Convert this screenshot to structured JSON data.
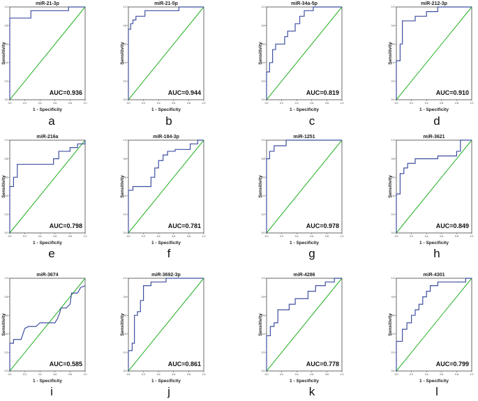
{
  "chart_data": [
    {
      "type": "line",
      "title": "miR-21-3p",
      "label": "a",
      "auc": "AUC=0.936",
      "xlabel": "1 - Specificity",
      "ylabel": "Sensitivity",
      "xlim": [
        0,
        1
      ],
      "ylim": [
        0,
        1
      ],
      "xticks": [
        "0.0",
        "0.2",
        "0.4",
        "0.6",
        "0.8",
        "1.0"
      ],
      "yticks": [
        "0.0",
        "0.2",
        "0.4",
        "0.6",
        "0.8",
        "1.0"
      ],
      "roc": [
        [
          0,
          0
        ],
        [
          0,
          0.88
        ],
        [
          0.28,
          0.88
        ],
        [
          0.28,
          0.96
        ],
        [
          0.78,
          0.96
        ],
        [
          0.78,
          1
        ],
        [
          1,
          1
        ]
      ]
    },
    {
      "type": "line",
      "title": "miR-21-5p",
      "label": "b",
      "auc": "AUC=0.944",
      "xlabel": "1 - Specificity",
      "ylabel": "Sensitivity",
      "xlim": [
        0,
        1
      ],
      "ylim": [
        0,
        1
      ],
      "xticks": [
        "0.0",
        "0.2",
        "0.4",
        "0.6",
        "0.8",
        "1.0"
      ],
      "yticks": [
        "0.0",
        "0.2",
        "0.4",
        "0.6",
        "0.8",
        "1.0"
      ],
      "roc": [
        [
          0,
          0
        ],
        [
          0,
          0.76
        ],
        [
          0.03,
          0.76
        ],
        [
          0.03,
          0.82
        ],
        [
          0.06,
          0.82
        ],
        [
          0.06,
          0.86
        ],
        [
          0.1,
          0.86
        ],
        [
          0.1,
          0.9
        ],
        [
          0.22,
          0.9
        ],
        [
          0.22,
          0.96
        ],
        [
          0.67,
          0.96
        ],
        [
          0.67,
          1
        ],
        [
          1,
          1
        ]
      ]
    },
    {
      "type": "line",
      "title": "miR-34a-5p",
      "label": "c",
      "auc": "AUC=0.819",
      "xlabel": "1 - Specificity",
      "ylabel": "Sensitivity",
      "xlim": [
        0,
        1
      ],
      "ylim": [
        0,
        1
      ],
      "xticks": [
        "0.0",
        "0.2",
        "0.4",
        "0.6",
        "0.8",
        "1.0"
      ],
      "yticks": [
        "0.0",
        "0.2",
        "0.4",
        "0.6",
        "0.8",
        "1.0"
      ],
      "roc": [
        [
          0,
          0
        ],
        [
          0,
          0.3
        ],
        [
          0.04,
          0.3
        ],
        [
          0.04,
          0.4
        ],
        [
          0.08,
          0.4
        ],
        [
          0.08,
          0.54
        ],
        [
          0.12,
          0.54
        ],
        [
          0.12,
          0.6
        ],
        [
          0.24,
          0.6
        ],
        [
          0.24,
          0.68
        ],
        [
          0.28,
          0.68
        ],
        [
          0.28,
          0.74
        ],
        [
          0.38,
          0.74
        ],
        [
          0.38,
          0.82
        ],
        [
          0.44,
          0.82
        ],
        [
          0.44,
          0.9
        ],
        [
          0.5,
          0.9
        ],
        [
          0.5,
          0.96
        ],
        [
          0.62,
          0.96
        ],
        [
          0.62,
          1
        ],
        [
          1,
          1
        ]
      ]
    },
    {
      "type": "line",
      "title": "miR-212-3p",
      "label": "d",
      "auc": "AUC=0.910",
      "xlabel": "1 - Specificity",
      "ylabel": "Sensitivity",
      "xlim": [
        0,
        1
      ],
      "ylim": [
        0,
        1
      ],
      "xticks": [
        "0.0",
        "0.2",
        "0.4",
        "0.6",
        "0.8",
        "1.0"
      ],
      "yticks": [
        "0.0",
        "0.2",
        "0.4",
        "0.6",
        "0.8",
        "1.0"
      ],
      "roc": [
        [
          0,
          0
        ],
        [
          0,
          0.42
        ],
        [
          0.05,
          0.42
        ],
        [
          0.05,
          0.6
        ],
        [
          0.08,
          0.6
        ],
        [
          0.08,
          0.85
        ],
        [
          0.25,
          0.85
        ],
        [
          0.25,
          0.9
        ],
        [
          0.4,
          0.9
        ],
        [
          0.4,
          0.95
        ],
        [
          0.55,
          0.95
        ],
        [
          0.55,
          1
        ],
        [
          1,
          1
        ]
      ]
    },
    {
      "type": "line",
      "title": "miR-216a",
      "label": "e",
      "auc": "AUC=0.798",
      "xlabel": "1 - Specificity",
      "ylabel": "Sensitivity",
      "xlim": [
        0,
        1
      ],
      "ylim": [
        0,
        1
      ],
      "xticks": [
        "0.0",
        "0.2",
        "0.4",
        "0.6",
        "0.8",
        "1.0"
      ],
      "yticks": [
        "0.0",
        "0.2",
        "0.4",
        "0.6",
        "0.8",
        "1.0"
      ],
      "roc": [
        [
          0,
          0
        ],
        [
          0,
          0.5
        ],
        [
          0.05,
          0.5
        ],
        [
          0.05,
          0.6
        ],
        [
          0.1,
          0.6
        ],
        [
          0.1,
          0.74
        ],
        [
          0.58,
          0.74
        ],
        [
          0.58,
          0.8
        ],
        [
          0.65,
          0.8
        ],
        [
          0.65,
          0.88
        ],
        [
          0.8,
          0.88
        ],
        [
          0.8,
          0.92
        ],
        [
          0.9,
          0.92
        ],
        [
          0.9,
          0.96
        ],
        [
          1,
          0.96
        ],
        [
          1,
          1
        ]
      ]
    },
    {
      "type": "line",
      "title": "miR-184-3p",
      "label": "f",
      "auc": "AUC=0.781",
      "xlabel": "1 - Specificity",
      "ylabel": "Sensitivity",
      "xlim": [
        0,
        1
      ],
      "ylim": [
        0,
        1
      ],
      "xticks": [
        "0.0",
        "0.2",
        "0.4",
        "0.6",
        "0.8",
        "1.0"
      ],
      "yticks": [
        "0.0",
        "0.2",
        "0.4",
        "0.6",
        "0.8",
        "1.0"
      ],
      "roc": [
        [
          0,
          0
        ],
        [
          0,
          0.46
        ],
        [
          0.06,
          0.46
        ],
        [
          0.06,
          0.5
        ],
        [
          0.3,
          0.5
        ],
        [
          0.3,
          0.6
        ],
        [
          0.35,
          0.6
        ],
        [
          0.35,
          0.7
        ],
        [
          0.4,
          0.7
        ],
        [
          0.4,
          0.78
        ],
        [
          0.46,
          0.78
        ],
        [
          0.46,
          0.84
        ],
        [
          0.52,
          0.84
        ],
        [
          0.52,
          0.88
        ],
        [
          0.62,
          0.88
        ],
        [
          0.62,
          0.9
        ],
        [
          0.82,
          0.9
        ],
        [
          0.82,
          0.96
        ],
        [
          0.92,
          0.96
        ],
        [
          0.92,
          1
        ],
        [
          1,
          1
        ]
      ]
    },
    {
      "type": "line",
      "title": "miR-1251",
      "label": "g",
      "auc": "AUC=0.978",
      "xlabel": "1 - Specificity",
      "ylabel": "Sensitivity",
      "xlim": [
        0,
        1
      ],
      "ylim": [
        0,
        1
      ],
      "xticks": [
        "0.0",
        "0.2",
        "0.4",
        "0.6",
        "0.8",
        "1.0"
      ],
      "yticks": [
        "0.0",
        "0.2",
        "0.4",
        "0.6",
        "0.8",
        "1.0"
      ],
      "roc": [
        [
          0,
          0
        ],
        [
          0,
          0.8
        ],
        [
          0.04,
          0.8
        ],
        [
          0.04,
          0.88
        ],
        [
          0.1,
          0.88
        ],
        [
          0.1,
          0.94
        ],
        [
          0.26,
          0.94
        ],
        [
          0.26,
          1
        ],
        [
          1,
          1
        ]
      ]
    },
    {
      "type": "line",
      "title": "miR-3621",
      "label": "h",
      "auc": "AUC=0.849",
      "xlabel": "1 - Specificity",
      "ylabel": "Sensitivity",
      "xlim": [
        0,
        1
      ],
      "ylim": [
        0,
        1
      ],
      "xticks": [
        "0.0",
        "0.2",
        "0.4",
        "0.6",
        "0.8",
        "1.0"
      ],
      "yticks": [
        "0.0",
        "0.2",
        "0.4",
        "0.6",
        "0.8",
        "1.0"
      ],
      "roc": [
        [
          0,
          0
        ],
        [
          0,
          0.42
        ],
        [
          0.05,
          0.42
        ],
        [
          0.05,
          0.64
        ],
        [
          0.1,
          0.64
        ],
        [
          0.1,
          0.7
        ],
        [
          0.15,
          0.7
        ],
        [
          0.15,
          0.75
        ],
        [
          0.25,
          0.75
        ],
        [
          0.25,
          0.8
        ],
        [
          0.55,
          0.8
        ],
        [
          0.55,
          0.83
        ],
        [
          0.8,
          0.83
        ],
        [
          0.8,
          0.88
        ],
        [
          0.85,
          0.88
        ],
        [
          0.85,
          1
        ],
        [
          1,
          1
        ]
      ]
    },
    {
      "type": "line",
      "title": "miR-3674",
      "label": "i",
      "auc": "AUC=0.585",
      "xlabel": "1 - Specificity",
      "ylabel": "Sensitivity",
      "xlim": [
        0,
        1
      ],
      "ylim": [
        0,
        1
      ],
      "xticks": [
        "0.0",
        "0.2",
        "0.4",
        "0.6",
        "0.8",
        "1.0"
      ],
      "yticks": [
        "0.0",
        "0.2",
        "0.4",
        "0.6",
        "0.8",
        "1.0"
      ],
      "roc": [
        [
          0,
          0
        ],
        [
          0,
          0.3
        ],
        [
          0.05,
          0.3
        ],
        [
          0.05,
          0.34
        ],
        [
          0.15,
          0.34
        ],
        [
          0.2,
          0.46
        ],
        [
          0.25,
          0.48
        ],
        [
          0.35,
          0.48
        ],
        [
          0.4,
          0.52
        ],
        [
          0.6,
          0.52
        ],
        [
          0.63,
          0.56
        ],
        [
          0.66,
          0.62
        ],
        [
          0.68,
          0.68
        ],
        [
          0.75,
          0.68
        ],
        [
          0.8,
          0.72
        ],
        [
          0.82,
          0.84
        ],
        [
          0.9,
          0.84
        ],
        [
          0.94,
          0.9
        ],
        [
          1,
          0.92
        ]
      ]
    },
    {
      "type": "line",
      "title": "miR-3692-3p",
      "label": "j",
      "auc": "AUC=0.861",
      "xlabel": "1 - Specificity",
      "ylabel": "Sensitivity",
      "xlim": [
        0,
        1
      ],
      "ylim": [
        0,
        1
      ],
      "xticks": [
        "0.0",
        "0.2",
        "0.4",
        "0.6",
        "0.8",
        "1.0"
      ],
      "yticks": [
        "0.0",
        "0.2",
        "0.4",
        "0.6",
        "0.8",
        "1.0"
      ],
      "roc": [
        [
          0,
          0
        ],
        [
          0,
          0.22
        ],
        [
          0.05,
          0.22
        ],
        [
          0.05,
          0.3
        ],
        [
          0.08,
          0.3
        ],
        [
          0.08,
          0.6
        ],
        [
          0.12,
          0.6
        ],
        [
          0.12,
          0.64
        ],
        [
          0.16,
          0.64
        ],
        [
          0.16,
          0.76
        ],
        [
          0.2,
          0.76
        ],
        [
          0.2,
          0.92
        ],
        [
          0.3,
          0.92
        ],
        [
          0.3,
          0.96
        ],
        [
          0.5,
          0.96
        ],
        [
          0.5,
          1
        ],
        [
          1,
          1
        ]
      ]
    },
    {
      "type": "line",
      "title": "miR-4286",
      "label": "k",
      "auc": "AUC=0.778",
      "xlabel": "1 - Specificity",
      "ylabel": "Sensitivity",
      "xlim": [
        0,
        1
      ],
      "ylim": [
        0,
        1
      ],
      "xticks": [
        "0.0",
        "0.2",
        "0.4",
        "0.6",
        "0.8",
        "1.0"
      ],
      "yticks": [
        "0.0",
        "0.2",
        "0.4",
        "0.6",
        "0.8",
        "1.0"
      ],
      "roc": [
        [
          0,
          0
        ],
        [
          0,
          0.38
        ],
        [
          0.05,
          0.38
        ],
        [
          0.05,
          0.48
        ],
        [
          0.1,
          0.48
        ],
        [
          0.1,
          0.52
        ],
        [
          0.15,
          0.52
        ],
        [
          0.15,
          0.66
        ],
        [
          0.3,
          0.66
        ],
        [
          0.3,
          0.72
        ],
        [
          0.38,
          0.72
        ],
        [
          0.38,
          0.78
        ],
        [
          0.55,
          0.78
        ],
        [
          0.55,
          0.86
        ],
        [
          0.65,
          0.86
        ],
        [
          0.65,
          0.92
        ],
        [
          0.78,
          0.92
        ],
        [
          0.78,
          0.96
        ],
        [
          0.9,
          0.96
        ],
        [
          0.9,
          1
        ],
        [
          1,
          1
        ]
      ]
    },
    {
      "type": "line",
      "title": "miR-4301",
      "label": "l",
      "auc": "AUC=0.799",
      "xlabel": "1 - Specificity",
      "ylabel": "Sensitivity",
      "xlim": [
        0,
        1
      ],
      "ylim": [
        0,
        1
      ],
      "xticks": [
        "0.0",
        "0.2",
        "0.4",
        "0.6",
        "0.8",
        "1.0"
      ],
      "yticks": [
        "0.0",
        "0.2",
        "0.4",
        "0.6",
        "0.8",
        "1.0"
      ],
      "roc": [
        [
          0,
          0
        ],
        [
          0,
          0.32
        ],
        [
          0.08,
          0.32
        ],
        [
          0.08,
          0.45
        ],
        [
          0.14,
          0.45
        ],
        [
          0.14,
          0.52
        ],
        [
          0.2,
          0.52
        ],
        [
          0.2,
          0.6
        ],
        [
          0.25,
          0.6
        ],
        [
          0.25,
          0.66
        ],
        [
          0.3,
          0.66
        ],
        [
          0.3,
          0.72
        ],
        [
          0.35,
          0.72
        ],
        [
          0.35,
          0.8
        ],
        [
          0.4,
          0.8
        ],
        [
          0.4,
          0.86
        ],
        [
          0.45,
          0.86
        ],
        [
          0.45,
          0.92
        ],
        [
          0.55,
          0.92
        ],
        [
          0.55,
          0.96
        ],
        [
          0.92,
          0.96
        ],
        [
          0.92,
          1
        ],
        [
          1,
          1
        ]
      ]
    }
  ],
  "colors": {
    "roc": "#3f4fa0",
    "diagonal": "#22b022",
    "axis": "#444444"
  }
}
